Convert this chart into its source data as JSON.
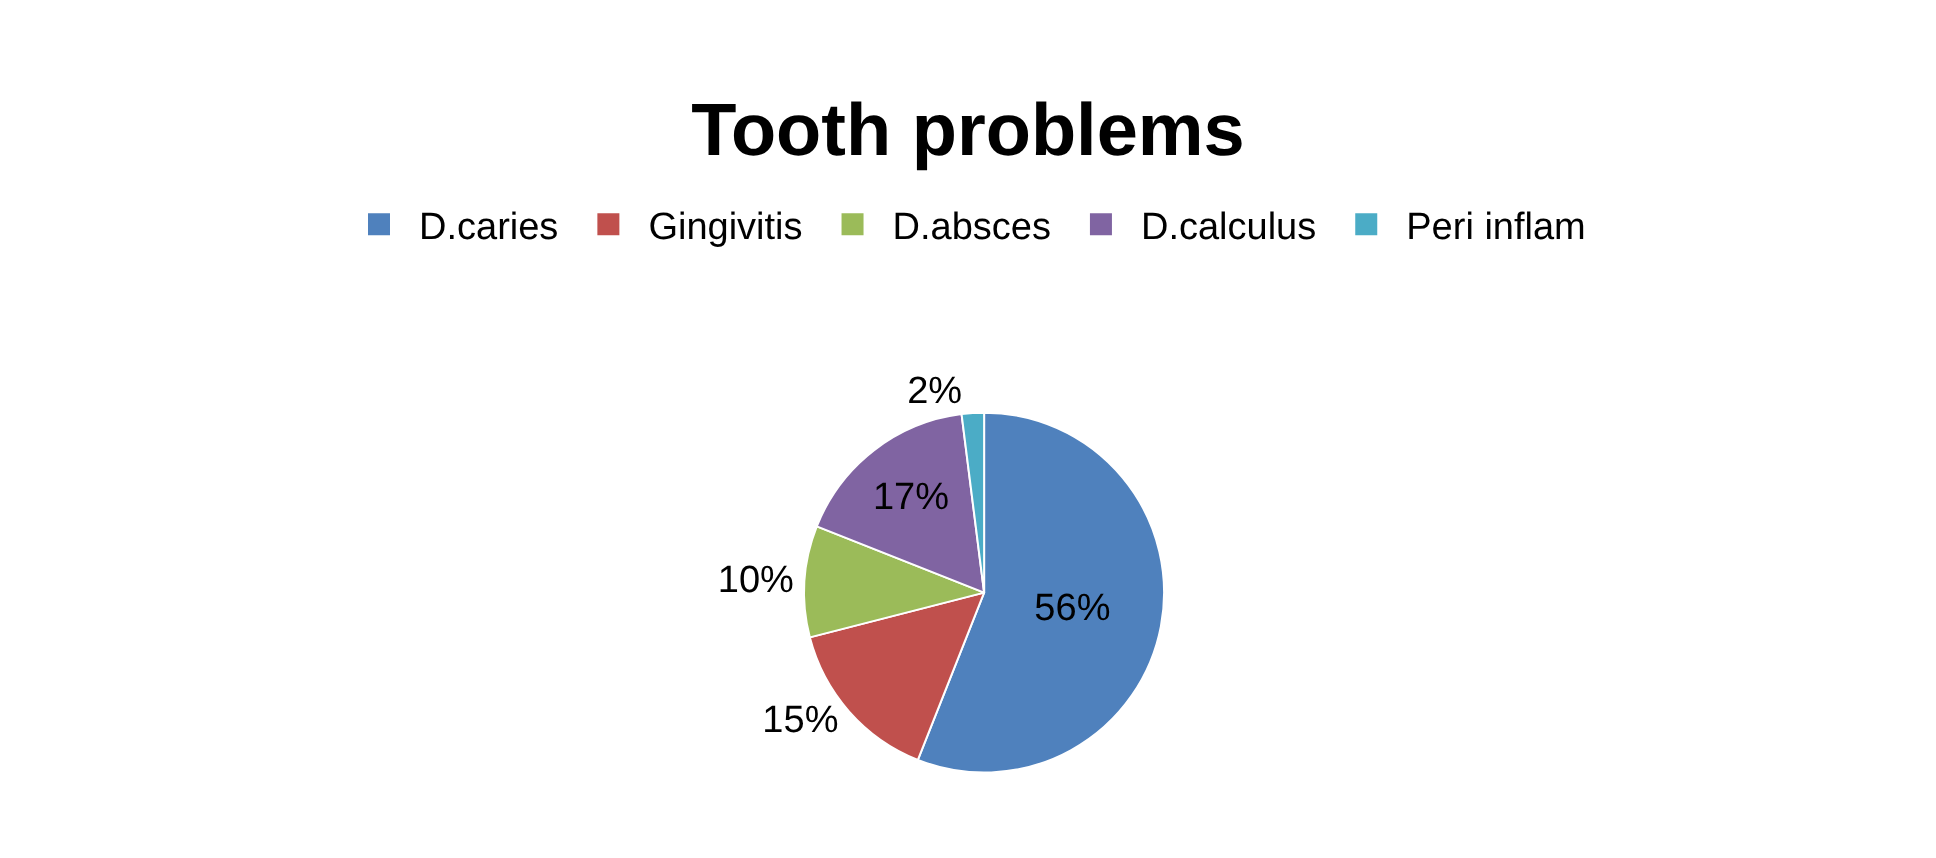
{
  "chart_data": {
    "type": "pie",
    "title": "Tooth problems",
    "categories": [
      "D.caries",
      "Gingivitis",
      "D.absces",
      "D.calculus",
      "Peri inflam"
    ],
    "values": [
      56,
      15,
      10,
      17,
      2
    ],
    "colors": [
      "#4f81bd",
      "#c0504d",
      "#9bbb59",
      "#8064a2",
      "#4bacc6"
    ],
    "value_labels": [
      "56%",
      "15%",
      "10%",
      "17%",
      "2%"
    ],
    "legend": "top"
  }
}
